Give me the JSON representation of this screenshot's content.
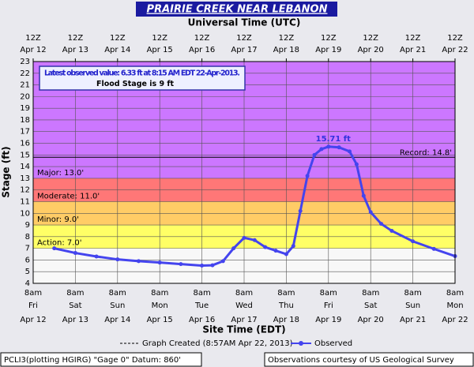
{
  "chart_data": {
    "type": "line",
    "title": "PRAIRIE CREEK NEAR LEBANON",
    "top_axis_label": "Universal Time (UTC)",
    "xlabel": "Site Time (EDT)",
    "ylabel": "Stage (ft)",
    "xlim": [
      "2013-04-12T08:00",
      "2013-04-22T08:00"
    ],
    "ylim": [
      4,
      23
    ],
    "yticks": [
      4,
      5,
      6,
      7,
      8,
      9,
      10,
      11,
      12,
      13,
      14,
      15,
      16,
      17,
      18,
      19,
      20,
      21,
      22,
      23
    ],
    "xticks": [
      {
        "value": "2013-04-12T08:00",
        "label": [
          "8am",
          "Fri",
          "Apr 12"
        ]
      },
      {
        "value": "2013-04-13T08:00",
        "label": [
          "8am",
          "Sat",
          "Apr 13"
        ]
      },
      {
        "value": "2013-04-14T08:00",
        "label": [
          "8am",
          "Sun",
          "Apr 14"
        ]
      },
      {
        "value": "2013-04-15T08:00",
        "label": [
          "8am",
          "Mon",
          "Apr 15"
        ]
      },
      {
        "value": "2013-04-16T08:00",
        "label": [
          "8am",
          "Tue",
          "Apr 16"
        ]
      },
      {
        "value": "2013-04-17T08:00",
        "label": [
          "8am",
          "Wed",
          "Apr 17"
        ]
      },
      {
        "value": "2013-04-18T08:00",
        "label": [
          "8am",
          "Thu",
          "Apr 18"
        ]
      },
      {
        "value": "2013-04-19T08:00",
        "label": [
          "8am",
          "Fri",
          "Apr 19"
        ]
      },
      {
        "value": "2013-04-20T08:00",
        "label": [
          "8am",
          "Sat",
          "Apr 20"
        ]
      },
      {
        "value": "2013-04-21T08:00",
        "label": [
          "8am",
          "Sun",
          "Apr 21"
        ]
      },
      {
        "value": "2013-04-22T08:00",
        "label": [
          "8am",
          "Mon",
          "Apr 22"
        ]
      }
    ],
    "x2ticks": [
      {
        "value": "2013-04-12T08:00",
        "label": [
          "12Z",
          "Apr 12"
        ]
      },
      {
        "value": "2013-04-13T08:00",
        "label": [
          "12Z",
          "Apr 13"
        ]
      },
      {
        "value": "2013-04-14T08:00",
        "label": [
          "12Z",
          "Apr 14"
        ]
      },
      {
        "value": "2013-04-15T08:00",
        "label": [
          "12Z",
          "Apr 15"
        ]
      },
      {
        "value": "2013-04-16T08:00",
        "label": [
          "12Z",
          "Apr 16"
        ]
      },
      {
        "value": "2013-04-17T08:00",
        "label": [
          "12Z",
          "Apr 17"
        ]
      },
      {
        "value": "2013-04-18T08:00",
        "label": [
          "12Z",
          "Apr 18"
        ]
      },
      {
        "value": "2013-04-19T08:00",
        "label": [
          "12Z",
          "Apr 19"
        ]
      },
      {
        "value": "2013-04-20T08:00",
        "label": [
          "12Z",
          "Apr 20"
        ]
      },
      {
        "value": "2013-04-21T08:00",
        "label": [
          "12Z",
          "Apr 21"
        ]
      },
      {
        "value": "2013-04-22T08:00",
        "label": [
          "12Z",
          "Apr 22"
        ]
      }
    ],
    "grid": true,
    "flood_categories": [
      {
        "label": "Action: 7.0'",
        "value": 7,
        "color": "#ffff66"
      },
      {
        "label": "Minor: 9.0'",
        "value": 9,
        "color": "#ffcc66"
      },
      {
        "label": "Moderate: 11.0'",
        "value": 11,
        "color": "#ff7777"
      },
      {
        "label": "Major: 13.0'",
        "value": 13,
        "color": "#cc77ff"
      }
    ],
    "record": {
      "label": "Record: 14.8'",
      "value": 14.8
    },
    "latest": {
      "text": "Latest observed value: 6.33 ft at 8:15 AM EDT 22-Apr-2013.",
      "flood_stage": "Flood Stage is 9 ft"
    },
    "peak_label": {
      "text": "15.71 ft",
      "x": "2013-04-19T08:00",
      "value": 15.71
    },
    "series": [
      {
        "name": "Observed",
        "color": "#4444ee",
        "x": [
          "2013-04-12T20:00",
          "2013-04-13T08:00",
          "2013-04-13T20:00",
          "2013-04-14T08:00",
          "2013-04-14T20:00",
          "2013-04-15T08:00",
          "2013-04-15T20:00",
          "2013-04-16T08:00",
          "2013-04-16T14:00",
          "2013-04-16T20:00",
          "2013-04-17T02:00",
          "2013-04-17T08:00",
          "2013-04-17T14:00",
          "2013-04-17T20:00",
          "2013-04-18T02:00",
          "2013-04-18T08:00",
          "2013-04-18T12:00",
          "2013-04-18T16:00",
          "2013-04-18T20:00",
          "2013-04-19T00:00",
          "2013-04-19T04:00",
          "2013-04-19T08:00",
          "2013-04-19T14:00",
          "2013-04-19T20:00",
          "2013-04-20T00:00",
          "2013-04-20T04:00",
          "2013-04-20T08:00",
          "2013-04-20T14:00",
          "2013-04-20T20:00",
          "2013-04-21T08:00",
          "2013-04-21T20:00",
          "2013-04-22T08:00"
        ],
        "values": [
          7.0,
          6.6,
          6.3,
          6.05,
          5.9,
          5.78,
          5.65,
          5.52,
          5.55,
          5.9,
          7.0,
          7.9,
          7.7,
          7.1,
          6.8,
          6.5,
          7.2,
          10.2,
          13.2,
          15.0,
          15.5,
          15.71,
          15.65,
          15.3,
          14.2,
          11.5,
          10.1,
          9.1,
          8.5,
          7.6,
          6.95,
          6.33
        ]
      }
    ],
    "legend": {
      "graph_created": "Graph Created (8:57AM Apr 22, 2013)"
    },
    "footer": {
      "left": "PCLI3(plotting HGIRG) \"Gage 0\" Datum: 860'",
      "right": "Observations courtesy of US Geological Survey"
    }
  }
}
